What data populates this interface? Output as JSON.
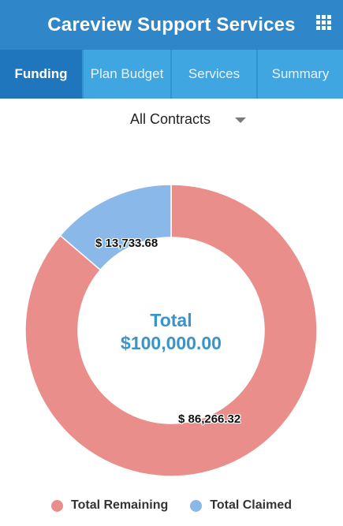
{
  "header": {
    "title": "Careview Support Services",
    "menu_icon": "grid-icon"
  },
  "tabs": [
    {
      "label": "Funding",
      "active": true
    },
    {
      "label": "Plan Budget",
      "active": false
    },
    {
      "label": "Services",
      "active": false
    },
    {
      "label": "Summary",
      "active": false
    }
  ],
  "filter": {
    "selected": "All Contracts"
  },
  "chart_data": {
    "type": "pie",
    "subtype": "donut",
    "center_title": "Total",
    "center_value": "$100,000.00",
    "series": [
      {
        "name": "Total Remaining",
        "value": 86266.32,
        "label": "$ 86,266.32",
        "color": "#ea8e8c"
      },
      {
        "name": "Total Claimed",
        "value": 13733.68,
        "label": "$ 13,733.68",
        "color": "#8ab8e8"
      }
    ],
    "legend": [
      {
        "label": "Total Remaining",
        "color": "#ea8e8c"
      },
      {
        "label": "Total Claimed",
        "color": "#8ab8e8"
      }
    ],
    "legend_placement": "bottom"
  },
  "colors": {
    "header": "#2f86c9",
    "tab_bar": "#3fa6e1",
    "tab_active": "#1f76bd",
    "center_text": "#3a93c9"
  }
}
